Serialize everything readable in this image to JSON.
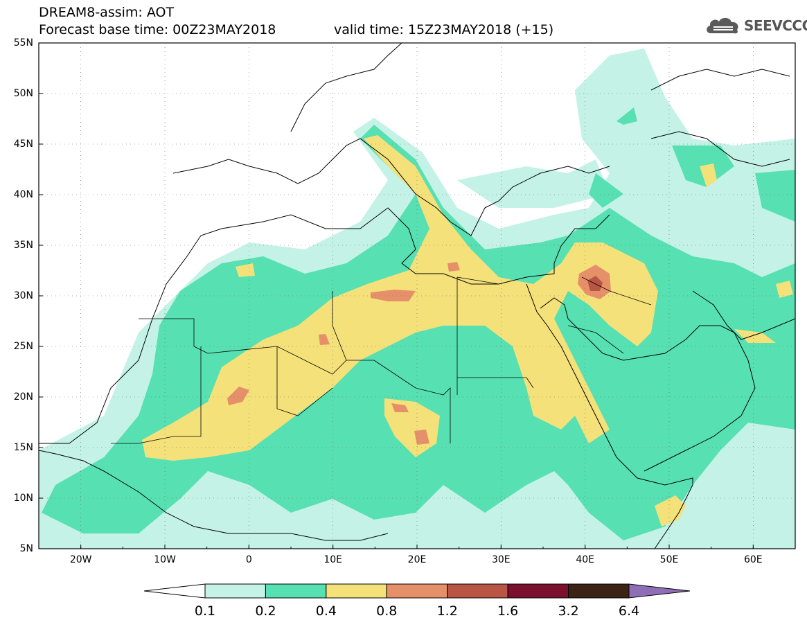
{
  "header": {
    "title_line1": "DREAM8-assim: AOT",
    "base_time": "Forecast base time: 00Z23MAY2018",
    "valid_time": "valid time: 15Z23MAY2018 (+15)",
    "logo_text": "SEEVCCC",
    "logo_icon": "cloud-icon"
  },
  "axes": {
    "lat_labels": [
      "55N",
      "50N",
      "45N",
      "40N",
      "35N",
      "30N",
      "25N",
      "20N",
      "15N",
      "10N",
      "5N"
    ],
    "lon_labels": [
      "20W",
      "10W",
      "0",
      "10E",
      "20E",
      "30E",
      "40E",
      "50E",
      "60E"
    ]
  },
  "colorbar": {
    "labels": [
      "0.1",
      "0.2",
      "0.4",
      "0.8",
      "1.2",
      "1.6",
      "3.2",
      "6.4"
    ],
    "colors": [
      "#ffffff",
      "#c4f2e6",
      "#57e0b2",
      "#f5e17a",
      "#e6906a",
      "#b85545",
      "#7a0f2e",
      "#3d2316",
      "#8e6eb5"
    ]
  },
  "map_colors": {
    "land_outline": "#000000",
    "c01": "#c4f2e6",
    "c02": "#57e0b2",
    "c04": "#f5e17a",
    "c08": "#e6906a",
    "c12": "#b85545"
  }
}
